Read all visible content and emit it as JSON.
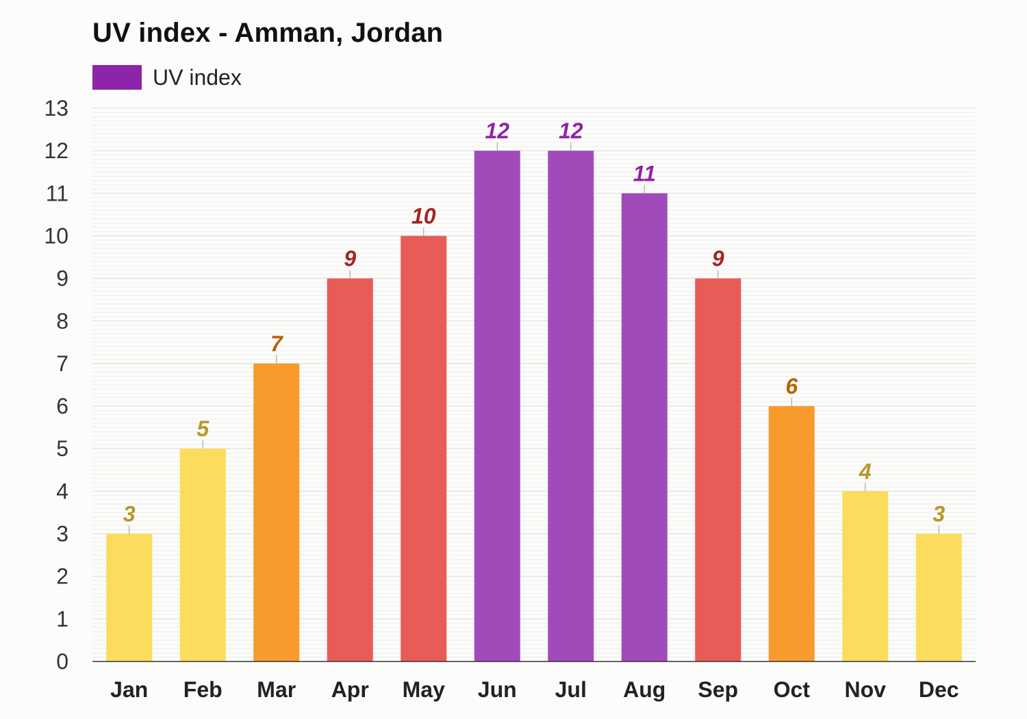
{
  "chart_data": {
    "type": "bar",
    "title": "UV index - Amman, Jordan",
    "categories": [
      "Jan",
      "Feb",
      "Mar",
      "Apr",
      "May",
      "Jun",
      "Jul",
      "Aug",
      "Sep",
      "Oct",
      "Nov",
      "Dec"
    ],
    "series": [
      {
        "name": "UV index",
        "values": [
          3,
          5,
          7,
          9,
          10,
          12,
          12,
          11,
          9,
          6,
          4,
          3
        ],
        "color": "#8e24aa"
      }
    ],
    "ylim": [
      0,
      13
    ],
    "yticks": [
      0,
      1,
      2,
      3,
      4,
      5,
      6,
      7,
      8,
      9,
      10,
      11,
      12,
      13
    ],
    "grid": true,
    "legend_position": "top-left",
    "color_scale": [
      {
        "max": 5,
        "bar": "#fcdc5c",
        "label": "#b8962b"
      },
      {
        "max": 7,
        "bar": "#f99a2c",
        "label": "#b8620a"
      },
      {
        "max": 10,
        "bar": "#e85b56",
        "label": "#a52424"
      },
      {
        "max": 99,
        "bar": "#a14bbb",
        "label": "#8e24aa"
      }
    ]
  }
}
